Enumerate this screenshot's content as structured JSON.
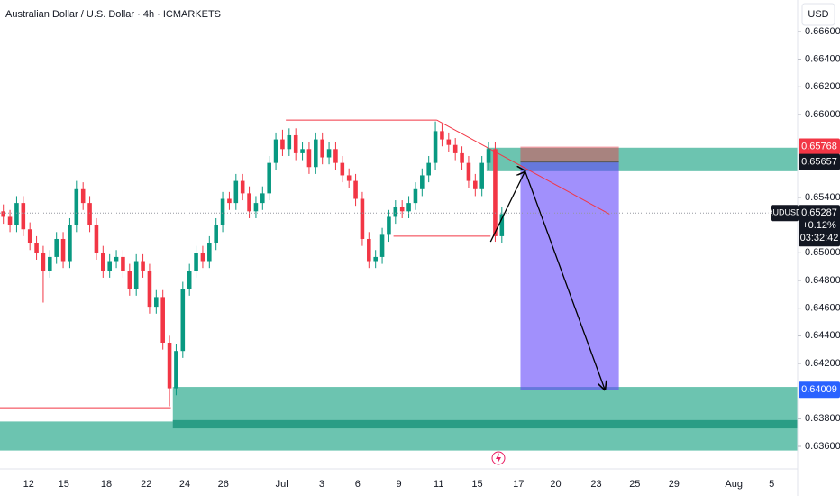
{
  "chart_data": {
    "type": "candlestick",
    "title": "Australian Dollar / U.S. Dollar · 4h · ICMARKETS",
    "currency": "USD",
    "xlim": [
      0,
      120
    ],
    "xticks": [
      {
        "value": 4.3,
        "label": "12"
      },
      {
        "value": 9.6,
        "label": "15"
      },
      {
        "value": 16,
        "label": "18"
      },
      {
        "value": 22,
        "label": "22"
      },
      {
        "value": 27.8,
        "label": "24"
      },
      {
        "value": 33.6,
        "label": "26"
      },
      {
        "value": 42.4,
        "label": "Jul"
      },
      {
        "value": 48.4,
        "label": "3"
      },
      {
        "value": 53.8,
        "label": "6"
      },
      {
        "value": 60,
        "label": "9"
      },
      {
        "value": 66,
        "label": "11"
      },
      {
        "value": 71.8,
        "label": "15"
      },
      {
        "value": 78,
        "label": "17"
      },
      {
        "value": 83.6,
        "label": "20"
      },
      {
        "value": 89.7,
        "label": "23"
      },
      {
        "value": 95.5,
        "label": "25"
      },
      {
        "value": 101.4,
        "label": "29"
      },
      {
        "value": 110.4,
        "label": "Aug"
      },
      {
        "value": 116.1,
        "label": "5"
      }
    ],
    "ylim": [
      0.63437,
      0.66828
    ],
    "yticks": [
      {
        "value": 0.636,
        "label": "0.63600"
      },
      {
        "value": 0.638,
        "label": "0.63800"
      },
      {
        "value": 0.642,
        "label": "0.64200"
      },
      {
        "value": 0.644,
        "label": "0.64400"
      },
      {
        "value": 0.646,
        "label": "0.64600"
      },
      {
        "value": 0.648,
        "label": "0.64800"
      },
      {
        "value": 0.65,
        "label": "0.65000"
      },
      {
        "value": 0.654,
        "label": "0.65400"
      },
      {
        "value": 0.66,
        "label": "0.66000"
      },
      {
        "value": 0.662,
        "label": "0.66200"
      },
      {
        "value": 0.664,
        "label": "0.66400"
      },
      {
        "value": 0.666,
        "label": "0.66600"
      }
    ],
    "grid": false,
    "up_color": "#089981",
    "down_color": "#f23645",
    "open": [
      0.653,
      0.6526,
      0.652,
      0.6536,
      0.6517,
      0.6507,
      0.65,
      0.6487,
      0.6497,
      0.651,
      0.6494,
      0.652,
      0.6546,
      0.6536,
      0.652,
      0.65,
      0.6487,
      0.6494,
      0.6497,
      0.6487,
      0.6474,
      0.6494,
      0.6487,
      0.6461,
      0.6468,
      0.6435,
      0.6402,
      0.6429,
      0.6474,
      0.6487,
      0.65,
      0.6494,
      0.6507,
      0.652,
      0.6539,
      0.6536,
      0.6552,
      0.6543,
      0.653,
      0.6536,
      0.6543,
      0.6565,
      0.6582,
      0.6575,
      0.6585,
      0.6572,
      0.6575,
      0.6562,
      0.6582,
      0.6569,
      0.6575,
      0.6565,
      0.6556,
      0.6552,
      0.6539,
      0.651,
      0.6494,
      0.6497,
      0.6513,
      0.6526,
      0.6533,
      0.653,
      0.6536,
      0.6546,
      0.6556,
      0.6565,
      0.6588,
      0.6582,
      0.6578,
      0.6572,
      0.6565,
      0.6552,
      0.6546,
      0.6565,
      0.6575,
      0.6512
    ],
    "high": [
      0.6535,
      0.6531,
      0.6541,
      0.6541,
      0.6522,
      0.6512,
      0.6505,
      0.6502,
      0.6515,
      0.6515,
      0.6525,
      0.6552,
      0.6551,
      0.6541,
      0.6525,
      0.6505,
      0.6499,
      0.6502,
      0.6502,
      0.6492,
      0.6499,
      0.6499,
      0.6492,
      0.6473,
      0.6473,
      0.644,
      0.6434,
      0.6479,
      0.6492,
      0.6505,
      0.6505,
      0.6512,
      0.6525,
      0.6544,
      0.6544,
      0.6557,
      0.6557,
      0.6548,
      0.6541,
      0.6548,
      0.657,
      0.6587,
      0.6589,
      0.659,
      0.659,
      0.658,
      0.658,
      0.6587,
      0.6587,
      0.658,
      0.658,
      0.657,
      0.6561,
      0.6557,
      0.6544,
      0.6515,
      0.6502,
      0.6518,
      0.6531,
      0.6538,
      0.6538,
      0.6541,
      0.6551,
      0.6561,
      0.657,
      0.6595,
      0.6593,
      0.6587,
      0.6583,
      0.6577,
      0.657,
      0.6557,
      0.657,
      0.658,
      0.658,
      0.6533
    ],
    "low": [
      0.6521,
      0.6515,
      0.6515,
      0.6512,
      0.6502,
      0.6495,
      0.6464,
      0.6482,
      0.6492,
      0.6489,
      0.6489,
      0.6515,
      0.6531,
      0.6515,
      0.6495,
      0.6482,
      0.6482,
      0.6489,
      0.6482,
      0.6469,
      0.6469,
      0.6482,
      0.6456,
      0.6456,
      0.643,
      0.6389,
      0.6397,
      0.6424,
      0.6469,
      0.6482,
      0.6489,
      0.6489,
      0.6502,
      0.6515,
      0.6531,
      0.6531,
      0.6538,
      0.6525,
      0.6525,
      0.6531,
      0.6538,
      0.656,
      0.657,
      0.657,
      0.6567,
      0.6567,
      0.6557,
      0.6557,
      0.6564,
      0.6564,
      0.656,
      0.6551,
      0.6547,
      0.6534,
      0.6505,
      0.6489,
      0.6489,
      0.6492,
      0.6508,
      0.6521,
      0.6525,
      0.6525,
      0.6531,
      0.6541,
      0.6551,
      0.656,
      0.6577,
      0.6573,
      0.6567,
      0.656,
      0.6547,
      0.6541,
      0.6541,
      0.656,
      0.6508,
      0.6507
    ],
    "close": [
      0.6526,
      0.652,
      0.6536,
      0.6517,
      0.6507,
      0.65,
      0.6487,
      0.6497,
      0.651,
      0.6494,
      0.652,
      0.6546,
      0.6536,
      0.652,
      0.65,
      0.6487,
      0.6494,
      0.6497,
      0.6487,
      0.6474,
      0.6494,
      0.6487,
      0.6461,
      0.6468,
      0.6435,
      0.6402,
      0.6429,
      0.6474,
      0.6487,
      0.65,
      0.6494,
      0.6507,
      0.652,
      0.6539,
      0.6536,
      0.6552,
      0.6543,
      0.653,
      0.6536,
      0.6543,
      0.6565,
      0.6582,
      0.6575,
      0.6585,
      0.6572,
      0.6575,
      0.6562,
      0.6582,
      0.6569,
      0.6575,
      0.6565,
      0.6556,
      0.6552,
      0.6539,
      0.651,
      0.6494,
      0.6497,
      0.6513,
      0.6526,
      0.6533,
      0.653,
      0.6536,
      0.6546,
      0.6556,
      0.6565,
      0.6588,
      0.6582,
      0.6578,
      0.6572,
      0.6565,
      0.6552,
      0.6546,
      0.6565,
      0.6575,
      0.6512,
      0.6528
    ],
    "zones": [
      {
        "x": [
          0,
          120
        ],
        "y": [
          0.6378,
          0.6357
        ],
        "color": "#6cc4b0"
      },
      {
        "x": [
          26,
          120
        ],
        "y": [
          0.6403,
          0.6378
        ],
        "color": "#6cc4b0"
      },
      {
        "x": [
          26,
          120
        ],
        "y": [
          0.6379,
          0.6373
        ],
        "color": "#2a9d85"
      },
      {
        "x": [
          73.2,
          120
        ],
        "y": [
          0.6576,
          0.6559
        ],
        "color": "#6cc4b0"
      }
    ],
    "lines": [
      {
        "x": [
          43,
          65.7
        ],
        "y": [
          0.6596,
          0.6596
        ],
        "color": "#f23645"
      },
      {
        "x": [
          59.2,
          73.8
        ],
        "y": [
          0.6512,
          0.6512
        ],
        "color": "#f23645"
      },
      {
        "x": [
          65.7,
          91.7
        ],
        "y": [
          0.6596,
          0.6528
        ],
        "color": "#f23645"
      },
      {
        "x": [
          0,
          25.7
        ],
        "y": [
          0.6388,
          0.6388
        ],
        "color": "#f23645"
      }
    ],
    "arrows": {
      "x": [
        73.8,
        79,
        91
      ],
      "y": [
        0.6508,
        0.6559,
        0.6401
      ],
      "color": "#000000"
    },
    "position": {
      "x": [
        78.3,
        93.1
      ],
      "stop": 0.65768,
      "entry": 0.65657,
      "target": 0.64009,
      "stop_color": "#f23645",
      "entry_color": "#131722",
      "target_color": "#2962ff"
    },
    "last_price": {
      "symbol": "AUDUSD",
      "value": 0.65287,
      "change": "+0.12%",
      "countdown": "03:32:42",
      "color": "#131722"
    }
  }
}
